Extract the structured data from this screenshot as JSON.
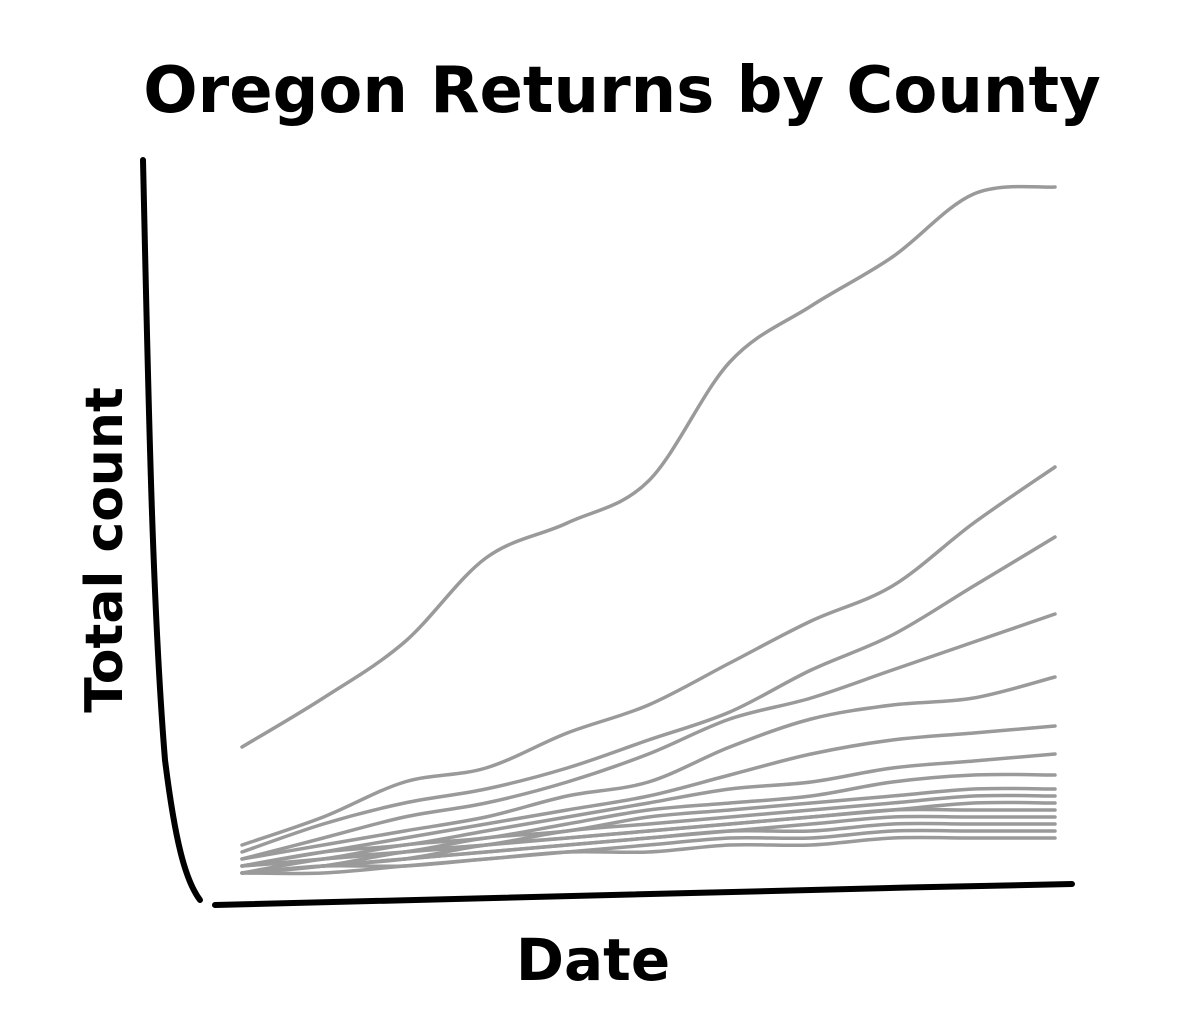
{
  "chart_data": {
    "type": "line",
    "title": "Oregon Returns by County",
    "xlabel": "Date",
    "ylabel": "Total count",
    "grid": false,
    "legend": "none",
    "ticks_shown": false,
    "line_color": "#9a9a9a",
    "axis_color": "#000000",
    "x": [
      0,
      0.1,
      0.2,
      0.3,
      0.4,
      0.5,
      0.6,
      0.7,
      0.8,
      0.9,
      1.0
    ],
    "series": [
      {
        "values": [
          0.19,
          0.26,
          0.34,
          0.46,
          0.51,
          0.57,
          0.74,
          0.82,
          0.89,
          0.98,
          0.99
        ]
      },
      {
        "values": [
          0.05,
          0.09,
          0.14,
          0.16,
          0.21,
          0.25,
          0.31,
          0.37,
          0.42,
          0.51,
          0.59
        ]
      },
      {
        "values": [
          0.04,
          0.08,
          0.11,
          0.13,
          0.16,
          0.2,
          0.24,
          0.3,
          0.35,
          0.42,
          0.49
        ]
      },
      {
        "values": [
          0.03,
          0.06,
          0.09,
          0.11,
          0.14,
          0.18,
          0.23,
          0.26,
          0.3,
          0.34,
          0.38
        ]
      },
      {
        "values": [
          0.03,
          0.05,
          0.07,
          0.09,
          0.12,
          0.14,
          0.19,
          0.23,
          0.25,
          0.26,
          0.29
        ]
      },
      {
        "values": [
          0.02,
          0.04,
          0.06,
          0.08,
          0.1,
          0.12,
          0.15,
          0.18,
          0.2,
          0.21,
          0.22
        ]
      },
      {
        "values": [
          0.02,
          0.04,
          0.05,
          0.07,
          0.09,
          0.11,
          0.13,
          0.14,
          0.16,
          0.17,
          0.18
        ]
      },
      {
        "values": [
          0.02,
          0.03,
          0.05,
          0.06,
          0.08,
          0.1,
          0.11,
          0.12,
          0.14,
          0.15,
          0.15
        ]
      },
      {
        "values": [
          0.02,
          0.03,
          0.04,
          0.06,
          0.07,
          0.09,
          0.1,
          0.11,
          0.12,
          0.13,
          0.13
        ]
      },
      {
        "values": [
          0.01,
          0.03,
          0.04,
          0.05,
          0.07,
          0.08,
          0.09,
          0.1,
          0.11,
          0.12,
          0.12
        ]
      },
      {
        "values": [
          0.01,
          0.02,
          0.04,
          0.05,
          0.06,
          0.07,
          0.08,
          0.09,
          0.1,
          0.11,
          0.11
        ]
      },
      {
        "values": [
          0.01,
          0.02,
          0.03,
          0.05,
          0.06,
          0.07,
          0.08,
          0.09,
          0.1,
          0.1,
          0.1
        ]
      },
      {
        "values": [
          0.01,
          0.02,
          0.03,
          0.04,
          0.05,
          0.06,
          0.07,
          0.08,
          0.09,
          0.09,
          0.09
        ]
      },
      {
        "values": [
          0.01,
          0.02,
          0.03,
          0.04,
          0.05,
          0.06,
          0.07,
          0.07,
          0.08,
          0.08,
          0.08
        ]
      },
      {
        "values": [
          0.01,
          0.02,
          0.02,
          0.03,
          0.04,
          0.05,
          0.06,
          0.06,
          0.07,
          0.07,
          0.07
        ]
      },
      {
        "values": [
          0.01,
          0.01,
          0.02,
          0.03,
          0.04,
          0.04,
          0.05,
          0.05,
          0.06,
          0.06,
          0.06
        ]
      }
    ]
  }
}
